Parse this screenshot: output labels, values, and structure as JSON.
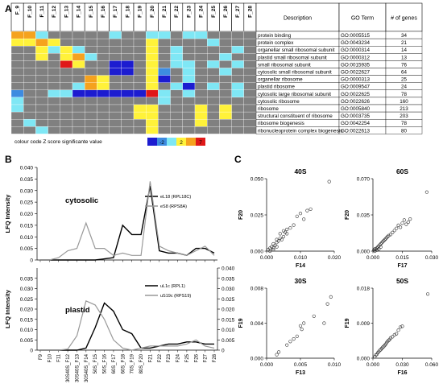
{
  "panels": {
    "a": "A",
    "b": "B",
    "c": "C"
  },
  "palette": {
    "grey": "#808080",
    "blue_dark": "#1c1cd0",
    "blue_mid": "#3d8be0",
    "cyan": "#7fe7f5",
    "yellow": "#fff23a",
    "orange": "#f5a21e",
    "red": "#e01818"
  },
  "chart_data": [
    {
      "type": "heatmap",
      "columns": [
        "F_9",
        "F_10",
        "F_11",
        "F_12",
        "F_13",
        "F_14",
        "F_15",
        "F_16",
        "F_17",
        "F_18",
        "F_19",
        "F_20",
        "F_21",
        "F_22",
        "F_23",
        "F_24",
        "F_25",
        "F_26",
        "F_27",
        "F_28"
      ],
      "table_headers": [
        "Description",
        "GO Term",
        "# of genes"
      ],
      "rows": [
        {
          "description": "protein binding",
          "go_term": "GO:0005515",
          "genes": "34",
          "cells": "OOCGGGGGCGGCCGCCGGGG"
        },
        {
          "description": "protein complex",
          "go_term": "GO:0043234",
          "genes": "21",
          "cells": "YYOYGGGGGGGYGGGGCGGG"
        },
        {
          "description": "organellar small ribosomal subunit",
          "go_term": "GO:0000314",
          "genes": "14",
          "cells": "GGYCYCGGGGGYGCGGGGCG"
        },
        {
          "description": "plastid small ribosomal subunit",
          "go_term": "GO:0000312",
          "genes": "13",
          "cells": "GGYGYOCGGGGYGCGGGCGG"
        },
        {
          "description": "small ribosomal subunit",
          "go_term": "GO:0015935",
          "genes": "76",
          "cells": "GGGGRYGGBBGYGCCGCGCG"
        },
        {
          "description": "cytosolic small ribosomal subunit",
          "go_term": "GO:0022627",
          "genes": "64",
          "cells": "GGGGGGGGBBGYMGCGGCGG"
        },
        {
          "description": "organellar ribosome",
          "go_term": "GO:0000313",
          "genes": "25",
          "cells": "GGGGGGOYGGGYBGCGGGGG"
        },
        {
          "description": "plastid ribosome",
          "go_term": "GO:0009547",
          "genes": "24",
          "cells": "GGGGGCOYGGGYGCBGCGCG"
        },
        {
          "description": "cytosolic large ribosomal subunit",
          "go_term": "GO:0022625",
          "genes": "78",
          "cells": "MGGCCBBBBBBRCGCGGGCG"
        },
        {
          "description": "cytosolic ribosome",
          "go_term": "GO:0022626",
          "genes": "160",
          "cells": "CGGGGGGGGGGGCGGGGGGG"
        },
        {
          "description": "ribosome",
          "go_term": "GO:0005840",
          "genes": "213",
          "cells": "CGGGGGGGGGYYGGGYGYGG"
        },
        {
          "description": "structural constituent of ribosome",
          "go_term": "GO:0003735",
          "genes": "203",
          "cells": "GGGGGGGGGGYYGGGYGYGG"
        },
        {
          "description": "ribosome biogenesis",
          "go_term": "GO:0042254",
          "genes": "78",
          "cells": "GCGGGGGGGGGYGGGYGGGG"
        },
        {
          "description": "ribonucleoprotein complex biogenesis",
          "go_term": "GO:0022613",
          "genes": "80",
          "cells": "GGCGGGGGGGGYGGGGGGGG"
        }
      ],
      "legend": {
        "title": "colour code Z score significante value",
        "ticks": [
          "-2",
          "2",
          "7"
        ]
      }
    },
    {
      "type": "line",
      "title": "cytosolic",
      "ylabel": "LFQ Intensity",
      "ylim": [
        0,
        0.04
      ],
      "yticks": [
        "0.040",
        "0.035",
        "0.030",
        "0.025",
        "0.020",
        "0.015",
        "0.010",
        "0.005",
        "0"
      ],
      "categories": [
        "F9",
        "F10",
        "F11",
        "F12",
        "F13",
        "F14",
        "F15",
        "F16",
        "F17",
        "F18",
        "F19",
        "F20",
        "F21",
        "F22",
        "F23",
        "F24",
        "F25",
        "F26",
        "F27",
        "F28"
      ],
      "series": [
        {
          "name": "eL18 (RPL18C)",
          "color": "#000000",
          "values": [
            0.0,
            0.0,
            0.0,
            0.0,
            0.0,
            0.0,
            0.0,
            0.0005,
            0.001,
            0.015,
            0.011,
            0.011,
            0.032,
            0.004,
            0.003,
            0.003,
            0.002,
            0.005,
            0.005,
            0.003
          ]
        },
        {
          "name": "eS8 (RPS8A)",
          "color": "#999999",
          "values": [
            0.0,
            0.0,
            0.001,
            0.004,
            0.005,
            0.016,
            0.005,
            0.005,
            0.002,
            0.003,
            0.002,
            0.002,
            0.034,
            0.006,
            0.004,
            0.003,
            0.002,
            0.004,
            0.006,
            0.002
          ]
        }
      ]
    },
    {
      "type": "line",
      "title": "plastid",
      "ylabel": "LFQ Intensity",
      "ylim": [
        0,
        0.04
      ],
      "y2lim": [
        0,
        0.04
      ],
      "yticks": [
        "0.035",
        "0.030",
        "0.025",
        "0.020",
        "0.015",
        "0.010",
        "0.005",
        "0"
      ],
      "y2ticks": [
        "0.040",
        "0.035",
        "0.030",
        "0.025",
        "0.020",
        "0.015",
        "0.010",
        "0.005",
        "0"
      ],
      "categories": [
        "F9",
        "F10",
        "F11",
        "30S40S_F12",
        "30S40S_F13",
        "30S40S_F14",
        "50S_F15",
        "50S_F16",
        "60S_F17",
        "60S_F18",
        "70S_F19",
        "80S_F20",
        "F21",
        "F22",
        "F23",
        "F24",
        "F25",
        "F26",
        "F27",
        "F28"
      ],
      "series": [
        {
          "name": "uL1c (RPL1)",
          "color": "#000000",
          "values": [
            0.0,
            0.0,
            0.0,
            0.0,
            0.0,
            0.001,
            0.011,
            0.023,
            0.019,
            0.01,
            0.008,
            0.001,
            0.001,
            0.002,
            0.003,
            0.003,
            0.004,
            0.004,
            0.003,
            0.003
          ]
        },
        {
          "name": "uS19c (RPS19)",
          "color": "#999999",
          "values": [
            0.0,
            0.0,
            0.0,
            0.0005,
            0.007,
            0.024,
            0.022,
            0.015,
            0.005,
            0.001,
            0.0,
            0.001,
            0.002,
            0.002,
            0.002,
            0.002,
            0.003,
            0.005,
            0.002,
            0.001
          ]
        }
      ]
    },
    {
      "type": "scatter",
      "title": "40S",
      "xlabel": "F14",
      "ylabel": "F20",
      "xlim": [
        0,
        0.02
      ],
      "ylim": [
        0,
        0.05
      ],
      "xticks": [
        "0.000",
        "0.010",
        "0.020"
      ],
      "yticks": [
        "0.050",
        "0.025",
        "0.000"
      ],
      "points": [
        [
          0.0005,
          0.001
        ],
        [
          0.001,
          0.002
        ],
        [
          0.0015,
          0.003
        ],
        [
          0.002,
          0.002
        ],
        [
          0.002,
          0.005
        ],
        [
          0.0025,
          0.004
        ],
        [
          0.003,
          0.006
        ],
        [
          0.003,
          0.008
        ],
        [
          0.0035,
          0.007
        ],
        [
          0.004,
          0.009
        ],
        [
          0.004,
          0.012
        ],
        [
          0.005,
          0.01
        ],
        [
          0.005,
          0.014
        ],
        [
          0.0055,
          0.013
        ],
        [
          0.006,
          0.015
        ],
        [
          0.006,
          0.012
        ],
        [
          0.007,
          0.016
        ],
        [
          0.008,
          0.018
        ],
        [
          0.009,
          0.024
        ],
        [
          0.01,
          0.026
        ],
        [
          0.011,
          0.022
        ],
        [
          0.012,
          0.028
        ],
        [
          0.013,
          0.029
        ],
        [
          0.0185,
          0.048
        ],
        [
          0.001,
          0.0
        ],
        [
          0.002,
          0.001
        ],
        [
          0.003,
          0.003
        ],
        [
          0.0045,
          0.008
        ]
      ]
    },
    {
      "type": "scatter",
      "title": "60S",
      "xlabel": "F17",
      "ylabel": "F20",
      "xlim": [
        0,
        0.03
      ],
      "ylim": [
        0,
        0.07
      ],
      "xticks": [
        "0.000",
        "0.015",
        "0.030"
      ],
      "yticks": [
        "0.070",
        "0.035",
        "0.000"
      ],
      "points": [
        [
          0.0005,
          0.001
        ],
        [
          0.001,
          0.002
        ],
        [
          0.0015,
          0.002
        ],
        [
          0.002,
          0.003
        ],
        [
          0.0025,
          0.004
        ],
        [
          0.003,
          0.005
        ],
        [
          0.0035,
          0.006
        ],
        [
          0.004,
          0.007
        ],
        [
          0.0045,
          0.008
        ],
        [
          0.005,
          0.009
        ],
        [
          0.0055,
          0.01
        ],
        [
          0.006,
          0.011
        ],
        [
          0.0065,
          0.012
        ],
        [
          0.007,
          0.013
        ],
        [
          0.0075,
          0.014
        ],
        [
          0.008,
          0.015
        ],
        [
          0.009,
          0.016
        ],
        [
          0.01,
          0.018
        ],
        [
          0.011,
          0.02
        ],
        [
          0.012,
          0.022
        ],
        [
          0.013,
          0.025
        ],
        [
          0.014,
          0.023
        ],
        [
          0.015,
          0.027
        ],
        [
          0.016,
          0.03
        ],
        [
          0.017,
          0.026
        ],
        [
          0.018,
          0.028
        ],
        [
          0.019,
          0.031
        ],
        [
          0.0275,
          0.057
        ],
        [
          0.001,
          0.0
        ],
        [
          0.002,
          0.001
        ],
        [
          0.003,
          0.002
        ],
        [
          0.004,
          0.004
        ]
      ]
    },
    {
      "type": "scatter",
      "title": "30S",
      "xlabel": "F13",
      "ylabel": "F19",
      "xlim": [
        0,
        0.01
      ],
      "ylim": [
        0,
        0.008
      ],
      "xticks": [
        "0.000",
        "0.005",
        "0.010"
      ],
      "yticks": [
        "0.008",
        "0.004",
        "0.000"
      ],
      "points": [
        [
          0.0015,
          0.0004
        ],
        [
          0.0018,
          0.0007
        ],
        [
          0.003,
          0.0015
        ],
        [
          0.0035,
          0.0019
        ],
        [
          0.004,
          0.0022
        ],
        [
          0.0045,
          0.0025
        ],
        [
          0.005,
          0.0037
        ],
        [
          0.0052,
          0.0033
        ],
        [
          0.0055,
          0.004
        ],
        [
          0.007,
          0.0048
        ],
        [
          0.0085,
          0.004
        ],
        [
          0.009,
          0.0062
        ],
        [
          0.0095,
          0.007
        ]
      ]
    },
    {
      "type": "scatter",
      "title": "50S",
      "xlabel": "F16",
      "ylabel": "F19",
      "xlim": [
        0,
        0.06
      ],
      "ylim": [
        0,
        0.018
      ],
      "xticks": [
        "0.000",
        "0.030",
        "0.060"
      ],
      "yticks": [
        "0.018",
        "0.009",
        "0.000"
      ],
      "points": [
        [
          0.002,
          0.0004
        ],
        [
          0.003,
          0.0008
        ],
        [
          0.004,
          0.001
        ],
        [
          0.005,
          0.0014
        ],
        [
          0.006,
          0.0017
        ],
        [
          0.007,
          0.002
        ],
        [
          0.008,
          0.0022
        ],
        [
          0.009,
          0.0025
        ],
        [
          0.01,
          0.0028
        ],
        [
          0.011,
          0.003
        ],
        [
          0.012,
          0.0033
        ],
        [
          0.013,
          0.0036
        ],
        [
          0.014,
          0.004
        ],
        [
          0.015,
          0.0043
        ],
        [
          0.016,
          0.0046
        ],
        [
          0.017,
          0.0048
        ],
        [
          0.018,
          0.0052
        ],
        [
          0.02,
          0.0055
        ],
        [
          0.022,
          0.006
        ],
        [
          0.024,
          0.0063
        ],
        [
          0.026,
          0.0072
        ],
        [
          0.028,
          0.008
        ],
        [
          0.03,
          0.0082
        ],
        [
          0.056,
          0.0165
        ]
      ]
    }
  ]
}
